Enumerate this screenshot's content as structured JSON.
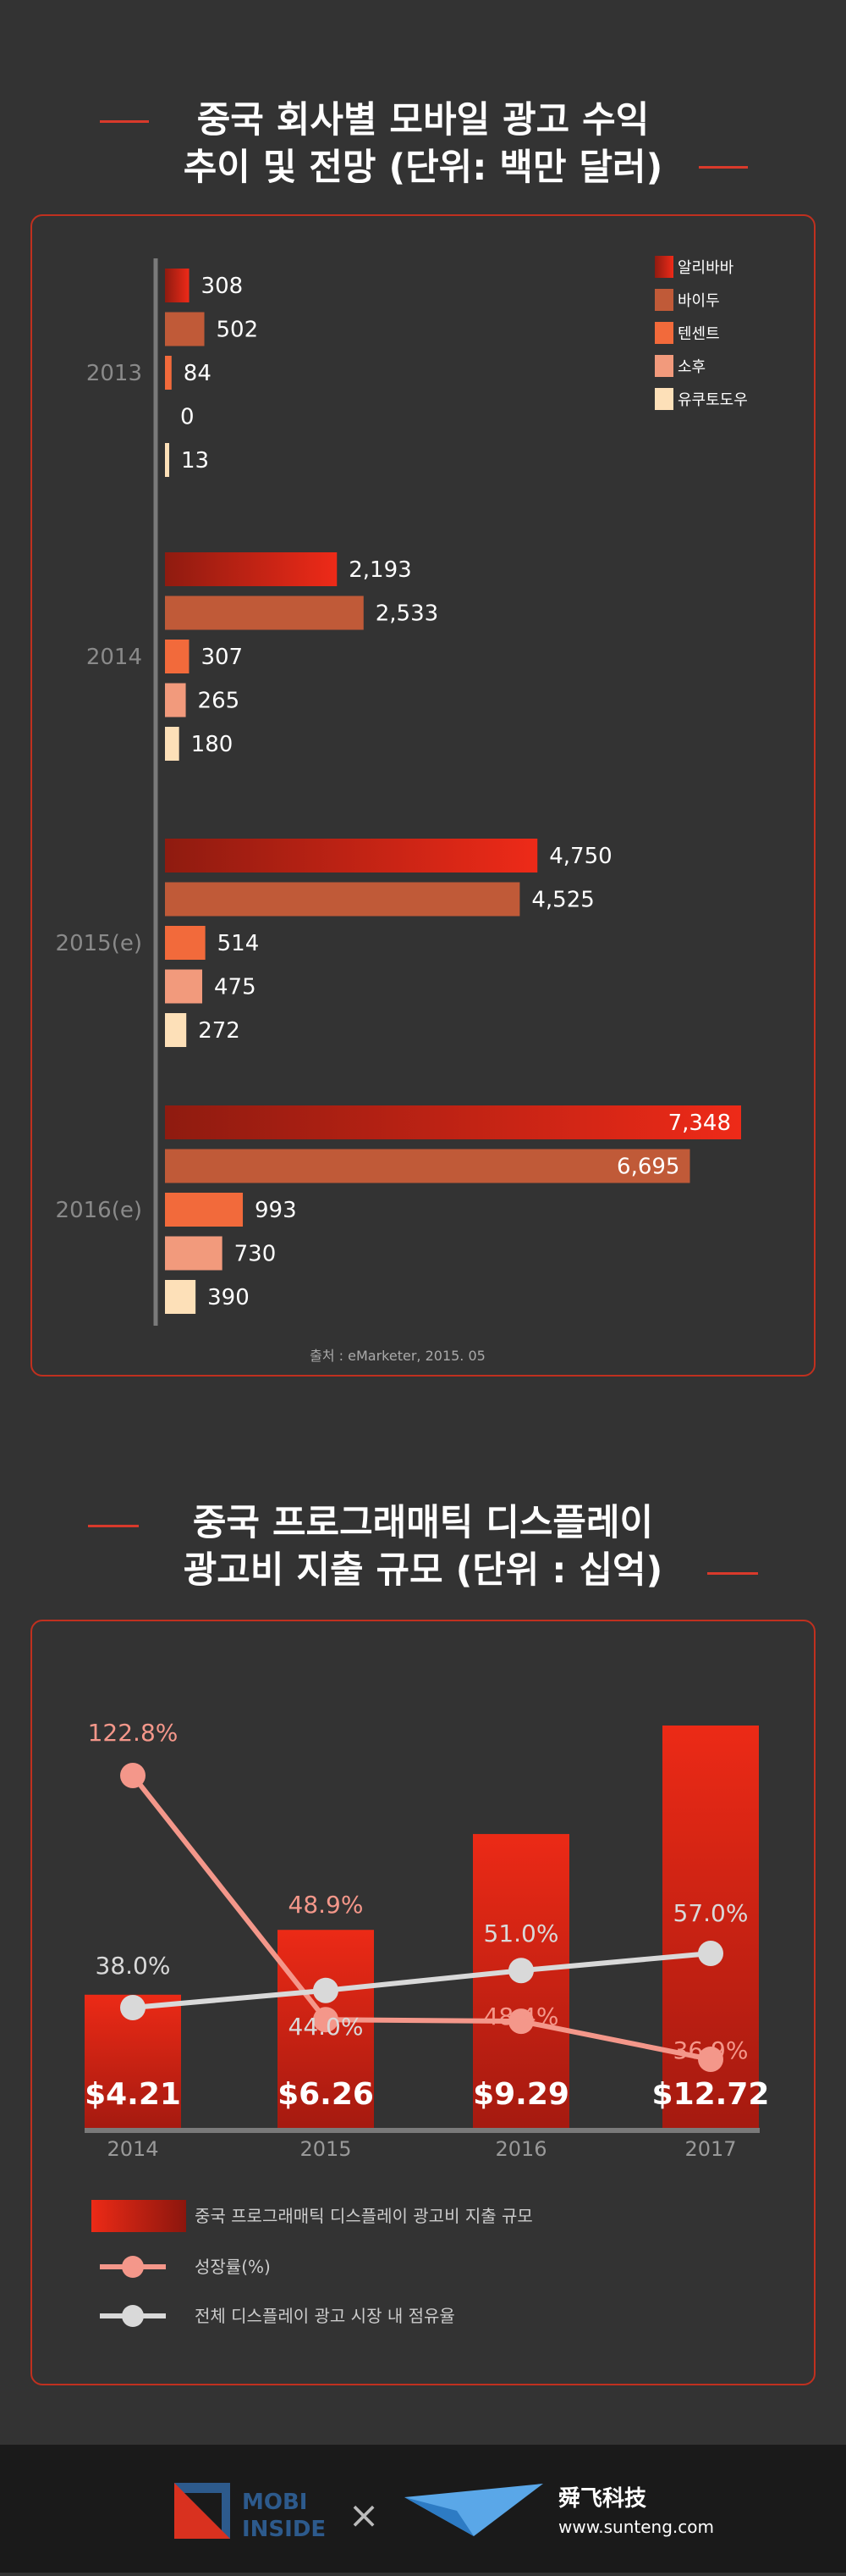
{
  "chart1": {
    "title_line1": "중국 회사별 모바일 광고 수익",
    "title_line2": "추이 및 전망 (단위: 백만 달러)",
    "source": "출처 : eMarketer, 2015. 05"
  },
  "chart2": {
    "title_line1": "중국 프로그래매틱 디스플레이",
    "title_line2": "광고비 지출 규모 (단위 : 십억)"
  },
  "footer": {
    "brand_top": "MOBI",
    "brand_bottom": "INSIDE",
    "times": "×",
    "partner_name": "舜飞科技",
    "partner_url": "www.sunteng.com"
  },
  "chart_data": [
    {
      "type": "bar",
      "title": "중국 회사별 모바일 광고 수익 추이 및 전망 (단위: 백만 달러)",
      "categories": [
        "2013",
        "2014",
        "2015(e)",
        "2016(e)"
      ],
      "series": [
        {
          "name": "알리바바",
          "color": "#c4281c",
          "values": [
            308,
            2193,
            4750,
            7348
          ],
          "labels": [
            "308",
            "2,193",
            "4,750",
            "7,348"
          ]
        },
        {
          "name": "바이두",
          "color": "#c05a38",
          "values": [
            502,
            2533,
            4525,
            6695
          ],
          "labels": [
            "502",
            "2,533",
            "4,525",
            "6,695"
          ]
        },
        {
          "name": "텐센트",
          "color": "#f26a3b",
          "values": [
            84,
            307,
            514,
            993
          ],
          "labels": [
            "84",
            "307",
            "514",
            "993"
          ]
        },
        {
          "name": "소후",
          "color": "#f29a7c",
          "values": [
            0,
            265,
            475,
            730
          ],
          "labels": [
            "0",
            "265",
            "475",
            "730"
          ]
        },
        {
          "name": "유쿠토도우",
          "color": "#fde0b8",
          "values": [
            13,
            180,
            272,
            390
          ],
          "labels": [
            "13",
            "180",
            "272",
            "390"
          ]
        }
      ],
      "orientation": "horizontal",
      "legend": "top-right",
      "xlim": [
        0,
        7348
      ],
      "grid": false
    },
    {
      "type": "bar",
      "title": "중국 프로그래매틱 디스플레이 광고비 지출 규모 (단위 : 십억)",
      "categories": [
        "2014",
        "2015",
        "2016",
        "2017"
      ],
      "series": [
        {
          "name": "중국 프로그래매틱 디스플레이 광고비 지출 규모",
          "type": "bar",
          "color": "#e02a17",
          "values": [
            4.21,
            6.26,
            9.29,
            12.72
          ],
          "labels": [
            "$4.21",
            "$6.26",
            "$9.29",
            "$12.72"
          ]
        },
        {
          "name": "성장률(%)",
          "type": "line",
          "color": "#f4978a",
          "values": [
            122.8,
            48.9,
            48.4,
            36.9
          ],
          "labels": [
            "122.8%",
            "48.9%",
            "48.4%",
            "36.9%"
          ]
        },
        {
          "name": "전체 디스플레이 광고 시장 내 점유율",
          "type": "line",
          "color": "#d9d9d9",
          "values": [
            38.0,
            44.0,
            51.0,
            57.0
          ],
          "labels": [
            "38.0%",
            "44.0%",
            "51.0%",
            "57.0%"
          ]
        }
      ],
      "legend": "bottom",
      "grid": false
    }
  ]
}
